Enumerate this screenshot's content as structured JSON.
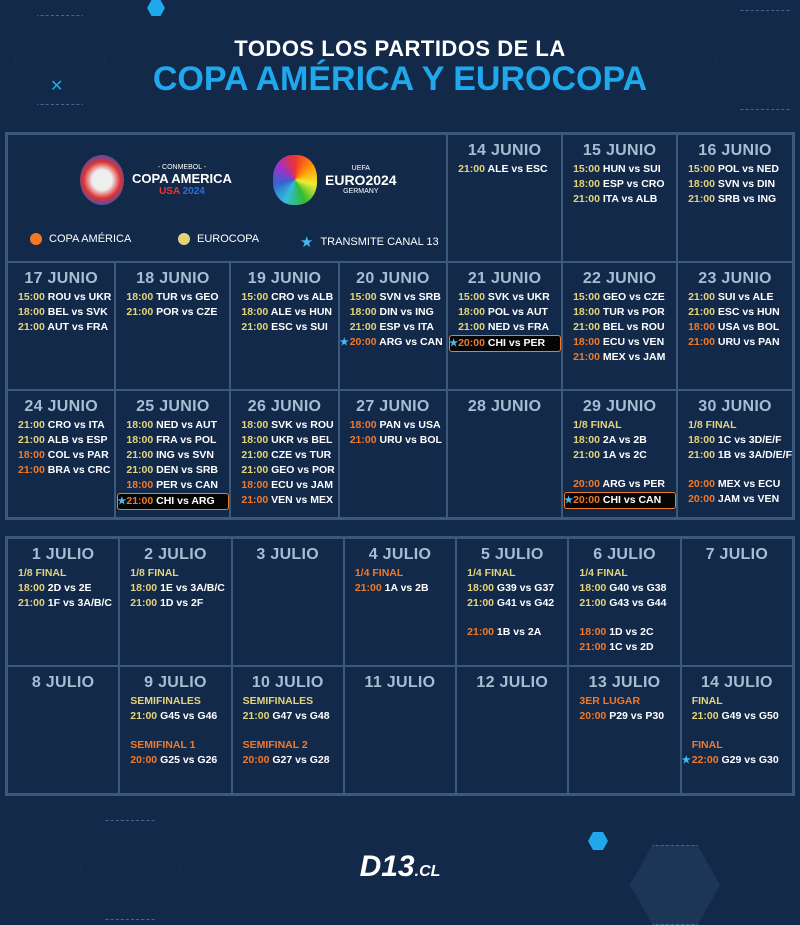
{
  "header": {
    "line1": "TODOS LOS PARTIDOS DE LA",
    "line2": "COPA AMÉRICA Y EUROCOPA"
  },
  "logos": {
    "copa": {
      "top": "- CONMEBOL -",
      "name": "COPA AMERICA",
      "sub1": "USA",
      "sub2": "2024"
    },
    "euro": {
      "top": "UEFA",
      "name": "EURO2024",
      "sub": "GERMANY"
    }
  },
  "legend": [
    {
      "label": "COPA AMÉRICA",
      "color": "#f07a2a",
      "icon": "orange-dot"
    },
    {
      "label": "EUROCOPA",
      "color": "#e3d47c",
      "icon": "yellow-dot"
    },
    {
      "label": "TRANSMITE CANAL 13",
      "color": "#49b8f0",
      "icon": "star-icon"
    }
  ],
  "colors": {
    "copa": "#f07a2a",
    "euro": "#e3d47c",
    "star": "#49b8f0",
    "background": "#13294a"
  },
  "june": [
    {
      "day": "14 JUNIO",
      "items": [
        {
          "t": "21:00",
          "m": "ALE vs ESC",
          "c": "e"
        }
      ]
    },
    {
      "day": "15 JUNIO",
      "items": [
        {
          "t": "15:00",
          "m": "HUN vs SUI",
          "c": "e"
        },
        {
          "t": "18:00",
          "m": "ESP vs CRO",
          "c": "e"
        },
        {
          "t": "21:00",
          "m": "ITA vs ALB",
          "c": "e"
        }
      ]
    },
    {
      "day": "16 JUNIO",
      "items": [
        {
          "t": "15:00",
          "m": "POL vs NED",
          "c": "e"
        },
        {
          "t": "18:00",
          "m": "SVN vs DIN",
          "c": "e"
        },
        {
          "t": "21:00",
          "m": "SRB vs ING",
          "c": "e"
        }
      ]
    },
    {
      "day": "17 JUNIO",
      "items": [
        {
          "t": "15:00",
          "m": "ROU vs UKR",
          "c": "e"
        },
        {
          "t": "18:00",
          "m": "BEL vs SVK",
          "c": "e"
        },
        {
          "t": "21:00",
          "m": "AUT vs FRA",
          "c": "e"
        }
      ]
    },
    {
      "day": "18 JUNIO",
      "items": [
        {
          "t": "18:00",
          "m": "TUR vs GEO",
          "c": "e"
        },
        {
          "t": "21:00",
          "m": "POR vs CZE",
          "c": "e"
        }
      ]
    },
    {
      "day": "19 JUNIO",
      "items": [
        {
          "t": "15:00",
          "m": "CRO vs ALB",
          "c": "e"
        },
        {
          "t": "18:00",
          "m": "ALE vs HUN",
          "c": "e"
        },
        {
          "t": "21:00",
          "m": "ESC vs SUI",
          "c": "e"
        }
      ]
    },
    {
      "day": "20 JUNIO",
      "items": [
        {
          "t": "15:00",
          "m": "SVN vs SRB",
          "c": "e"
        },
        {
          "t": "18:00",
          "m": "DIN vs ING",
          "c": "e"
        },
        {
          "t": "21:00",
          "m": "ESP vs ITA",
          "c": "e"
        },
        {
          "t": "20:00",
          "m": "ARG vs CAN",
          "c": "c",
          "star": true
        }
      ]
    },
    {
      "day": "21 JUNIO",
      "items": [
        {
          "t": "15:00",
          "m": "SVK vs UKR",
          "c": "e"
        },
        {
          "t": "18:00",
          "m": "POL vs AUT",
          "c": "e"
        },
        {
          "t": "21:00",
          "m": "NED vs FRA",
          "c": "e"
        },
        {
          "t": "20:00",
          "m": "CHI vs PER",
          "c": "c",
          "star": true,
          "hl": true
        }
      ]
    },
    {
      "day": "22 JUNIO",
      "items": [
        {
          "t": "15:00",
          "m": "GEO vs CZE",
          "c": "e"
        },
        {
          "t": "18:00",
          "m": "TUR vs POR",
          "c": "e"
        },
        {
          "t": "21:00",
          "m": "BEL vs ROU",
          "c": "e"
        },
        {
          "t": "18:00",
          "m": "ECU vs VEN",
          "c": "c"
        },
        {
          "t": "21:00",
          "m": "MEX vs JAM",
          "c": "c"
        }
      ]
    },
    {
      "day": "23 JUNIO",
      "items": [
        {
          "t": "21:00",
          "m": "SUI vs ALE",
          "c": "e"
        },
        {
          "t": "21:00",
          "m": "ESC vs HUN",
          "c": "e"
        },
        {
          "t": "18:00",
          "m": "USA vs BOL",
          "c": "c"
        },
        {
          "t": "21:00",
          "m": "URU vs PAN",
          "c": "c"
        }
      ]
    },
    {
      "day": "24 JUNIO",
      "items": [
        {
          "t": "21:00",
          "m": "CRO vs ITA",
          "c": "e"
        },
        {
          "t": "21:00",
          "m": "ALB vs ESP",
          "c": "e"
        },
        {
          "t": "18:00",
          "m": "COL vs PAR",
          "c": "c"
        },
        {
          "t": "21:00",
          "m": "BRA vs CRC",
          "c": "c"
        }
      ]
    },
    {
      "day": "25 JUNIO",
      "items": [
        {
          "t": "18:00",
          "m": "NED vs AUT",
          "c": "e"
        },
        {
          "t": "18:00",
          "m": "FRA vs POL",
          "c": "e"
        },
        {
          "t": "21:00",
          "m": "ING vs SVN",
          "c": "e"
        },
        {
          "t": "21:00",
          "m": "DEN vs SRB",
          "c": "e"
        },
        {
          "t": "18:00",
          "m": "PER vs CAN",
          "c": "c"
        },
        {
          "t": "21:00",
          "m": "CHI vs ARG",
          "c": "c",
          "star": true,
          "hl": true
        }
      ]
    },
    {
      "day": "26 JUNIO",
      "items": [
        {
          "t": "18:00",
          "m": "SVK vs ROU",
          "c": "e"
        },
        {
          "t": "18:00",
          "m": "UKR vs BEL",
          "c": "e"
        },
        {
          "t": "21:00",
          "m": "CZE vs TUR",
          "c": "e"
        },
        {
          "t": "21:00",
          "m": "GEO vs POR",
          "c": "e"
        },
        {
          "t": "18:00",
          "m": "ECU vs JAM",
          "c": "c"
        },
        {
          "t": "21:00",
          "m": "VEN vs MEX",
          "c": "c"
        }
      ]
    },
    {
      "day": "27 JUNIO",
      "items": [
        {
          "t": "18:00",
          "m": "PAN vs USA",
          "c": "c"
        },
        {
          "t": "21:00",
          "m": "URU vs BOL",
          "c": "c"
        }
      ]
    },
    {
      "day": "28 JUNIO",
      "items": []
    },
    {
      "day": "29 JUNIO",
      "items": [
        {
          "label": "1/8 FINAL",
          "c": "e"
        },
        {
          "t": "18:00",
          "m": "2A vs 2B",
          "c": "e"
        },
        {
          "t": "21:00",
          "m": "1A vs 2C",
          "c": "e"
        },
        {
          "gap": true
        },
        {
          "t": "20:00",
          "m": "ARG vs PER",
          "c": "c"
        },
        {
          "t": "20:00",
          "m": "CHI vs CAN",
          "c": "c",
          "star": true,
          "hl": true
        }
      ]
    },
    {
      "day": "30 JUNIO",
      "items": [
        {
          "label": "1/8 FINAL",
          "c": "e"
        },
        {
          "t": "18:00",
          "m": "1C vs 3D/E/F",
          "c": "e"
        },
        {
          "t": "21:00",
          "m": "1B vs 3A/D/E/F",
          "c": "e"
        },
        {
          "gap": true
        },
        {
          "t": "20:00",
          "m": "MEX vs ECU",
          "c": "c"
        },
        {
          "t": "20:00",
          "m": "JAM vs VEN",
          "c": "c"
        }
      ]
    }
  ],
  "july": [
    {
      "day": "1 JULIO",
      "items": [
        {
          "label": "1/8 FINAL",
          "c": "e"
        },
        {
          "t": "18:00",
          "m": "2D vs 2E",
          "c": "e"
        },
        {
          "t": "21:00",
          "m": "1F vs 3A/B/C",
          "c": "e"
        }
      ]
    },
    {
      "day": "2 JULIO",
      "items": [
        {
          "label": "1/8 FINAL",
          "c": "e"
        },
        {
          "t": "18:00",
          "m": "1E vs 3A/B/C",
          "c": "e"
        },
        {
          "t": "21:00",
          "m": "1D vs 2F",
          "c": "e"
        }
      ]
    },
    {
      "day": "3 JULIO",
      "items": []
    },
    {
      "day": "4 JULIO",
      "items": [
        {
          "label": "1/4 FINAL",
          "c": "c"
        },
        {
          "t": "21:00",
          "m": "1A vs 2B",
          "c": "c"
        }
      ]
    },
    {
      "day": "5 JULIO",
      "items": [
        {
          "label": "1/4 FINAL",
          "c": "e"
        },
        {
          "t": "18:00",
          "m": "G39 vs G37",
          "c": "e"
        },
        {
          "t": "21:00",
          "m": "G41 vs G42",
          "c": "e"
        },
        {
          "gap": true
        },
        {
          "t": "21:00",
          "m": "1B vs 2A",
          "c": "c"
        }
      ]
    },
    {
      "day": "6 JULIO",
      "items": [
        {
          "label": "1/4 FINAL",
          "c": "e"
        },
        {
          "t": "18:00",
          "m": "G40 vs G38",
          "c": "e"
        },
        {
          "t": "21:00",
          "m": "G43 vs G44",
          "c": "e"
        },
        {
          "gap": true
        },
        {
          "t": "18:00",
          "m": "1D vs 2C",
          "c": "c"
        },
        {
          "t": "21:00",
          "m": "1C vs 2D",
          "c": "c"
        }
      ]
    },
    {
      "day": "7 JULIO",
      "items": []
    },
    {
      "day": "8 JULIO",
      "items": []
    },
    {
      "day": "9 JULIO",
      "items": [
        {
          "label": "SEMIFINALES",
          "c": "e"
        },
        {
          "t": "21:00",
          "m": "G45 vs G46",
          "c": "e"
        },
        {
          "gap": true
        },
        {
          "label": "SEMIFINAL 1",
          "c": "c"
        },
        {
          "t": "20:00",
          "m": "G25 vs G26",
          "c": "c"
        }
      ]
    },
    {
      "day": "10 JULIO",
      "items": [
        {
          "label": "SEMIFINALES",
          "c": "e"
        },
        {
          "t": "21:00",
          "m": "G47 vs G48",
          "c": "e"
        },
        {
          "gap": true
        },
        {
          "label": "SEMIFINAL 2",
          "c": "c"
        },
        {
          "t": "20:00",
          "m": "G27 vs G28",
          "c": "c"
        }
      ]
    },
    {
      "day": "11 JULIO",
      "items": []
    },
    {
      "day": "12 JULIO",
      "items": []
    },
    {
      "day": "13 JULIO",
      "items": [
        {
          "label": "3ER LUGAR",
          "c": "c"
        },
        {
          "t": "20:00",
          "m": "P29 vs P30",
          "c": "c"
        }
      ]
    },
    {
      "day": "14 JULIO",
      "items": [
        {
          "label": "FINAL",
          "c": "e"
        },
        {
          "t": "21:00",
          "m": "G49 vs G50",
          "c": "e"
        },
        {
          "gap": true
        },
        {
          "label": "FINAL",
          "c": "c"
        },
        {
          "t": "22:00",
          "m": "G29 vs G30",
          "c": "c",
          "star": true
        }
      ]
    }
  ],
  "footer": {
    "brand": "D13",
    "tld": ".CL"
  }
}
